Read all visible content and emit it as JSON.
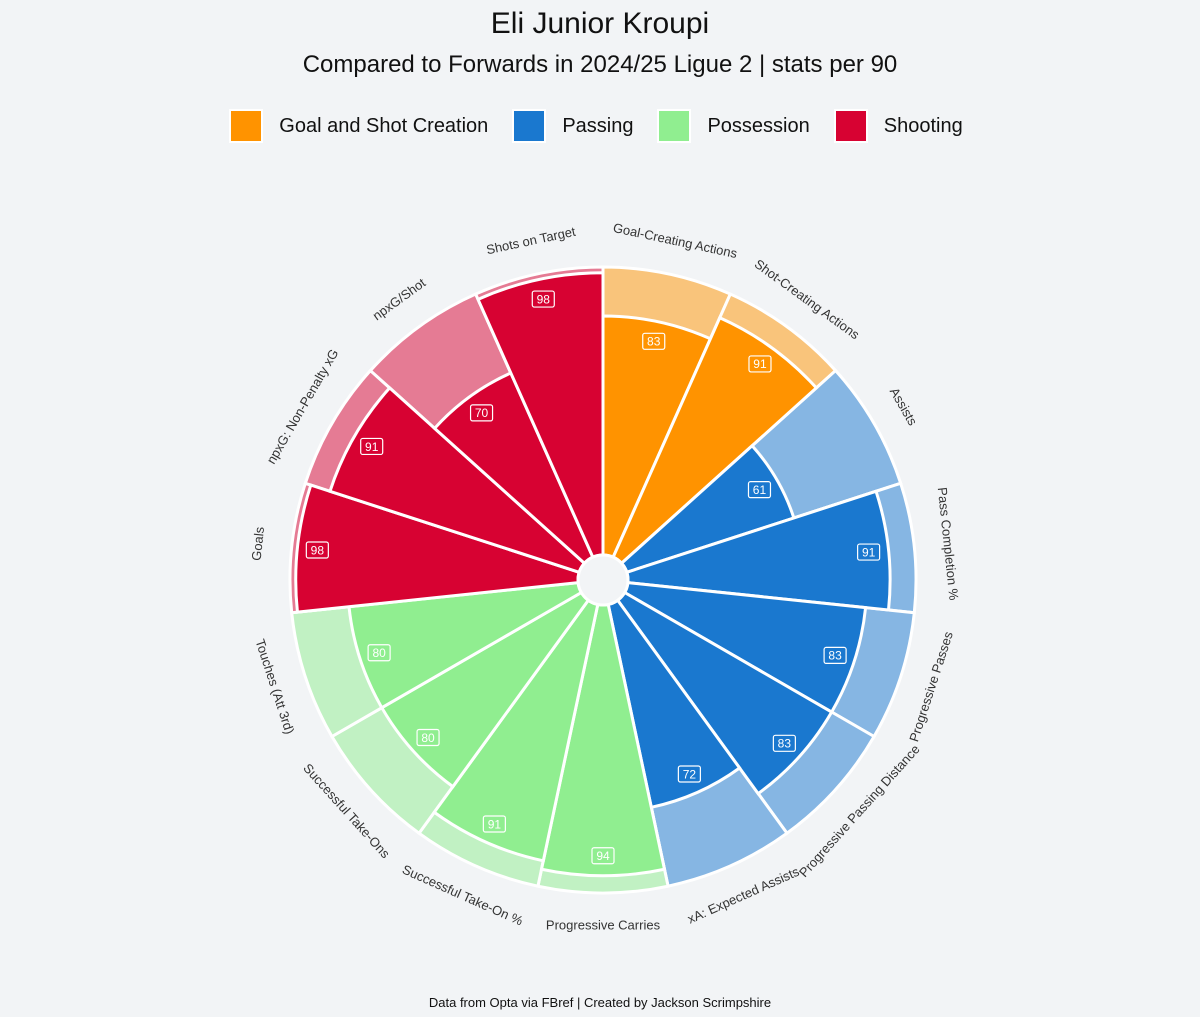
{
  "chart_data": {
    "type": "pizza",
    "title": "Eli Junior Kroupi",
    "subtitle": "Compared to Forwards in 2024/25 Ligue 2 | stats per 90",
    "value_range": [
      0,
      100
    ],
    "legend": [
      {
        "name": "Goal and Shot Creation",
        "color": "#ff9300"
      },
      {
        "name": "Passing",
        "color": "#1a78cf"
      },
      {
        "name": "Possession",
        "color": "#90ee90"
      },
      {
        "name": "Shooting",
        "color": "#d70232"
      }
    ],
    "stats": [
      {
        "label": "Goal-Creating Actions",
        "value": 83,
        "group": "Goal and Shot Creation"
      },
      {
        "label": "Shot-Creating Actions",
        "value": 91,
        "group": "Goal and Shot Creation"
      },
      {
        "label": "Assists",
        "value": 61,
        "group": "Passing"
      },
      {
        "label": "Pass Completion %",
        "value": 91,
        "group": "Passing"
      },
      {
        "label": "Progressive Passes",
        "value": 83,
        "group": "Passing"
      },
      {
        "label": "Progressive Passing Distance",
        "value": 83,
        "group": "Passing"
      },
      {
        "label": "xA: Expected Assists",
        "value": 72,
        "group": "Passing"
      },
      {
        "label": "Progressive Carries",
        "value": 94,
        "group": "Possession"
      },
      {
        "label": "Successful Take-On %",
        "value": 91,
        "group": "Possession"
      },
      {
        "label": "Successful Take-Ons",
        "value": 80,
        "group": "Possession"
      },
      {
        "label": "Touches (Att 3rd)",
        "value": 80,
        "group": "Possession"
      },
      {
        "label": "Goals",
        "value": 98,
        "group": "Shooting"
      },
      {
        "label": "npxG: Non-Penalty xG",
        "value": 91,
        "group": "Shooting"
      },
      {
        "label": "npxG/Shot",
        "value": 70,
        "group": "Shooting"
      },
      {
        "label": "Shots on Target",
        "value": 98,
        "group": "Shooting"
      }
    ]
  },
  "footer": "Data from Opta via FBref | Created by Jackson Scrimpshire"
}
